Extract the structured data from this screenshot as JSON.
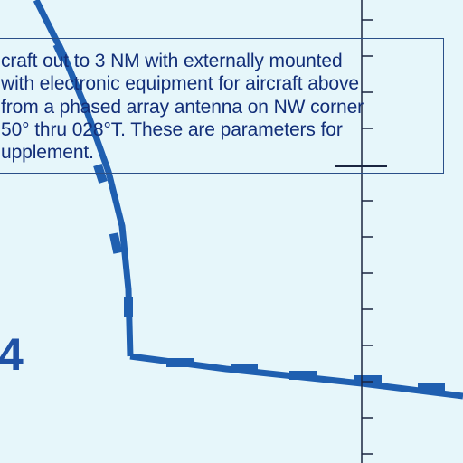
{
  "chart_note": {
    "lines": [
      "craft out to 3 NM with externally mounted",
      "with electronic equipment for aircraft above",
      "from a phased array antenna on NW corner",
      "50° thru 028°T. These are parameters for",
      "upplement."
    ]
  },
  "area_label": "4",
  "colors": {
    "background": "#e6f6fa",
    "boundary_line": "#1f5fb0",
    "text": "#122e78",
    "tick_line": "#1a2540"
  }
}
